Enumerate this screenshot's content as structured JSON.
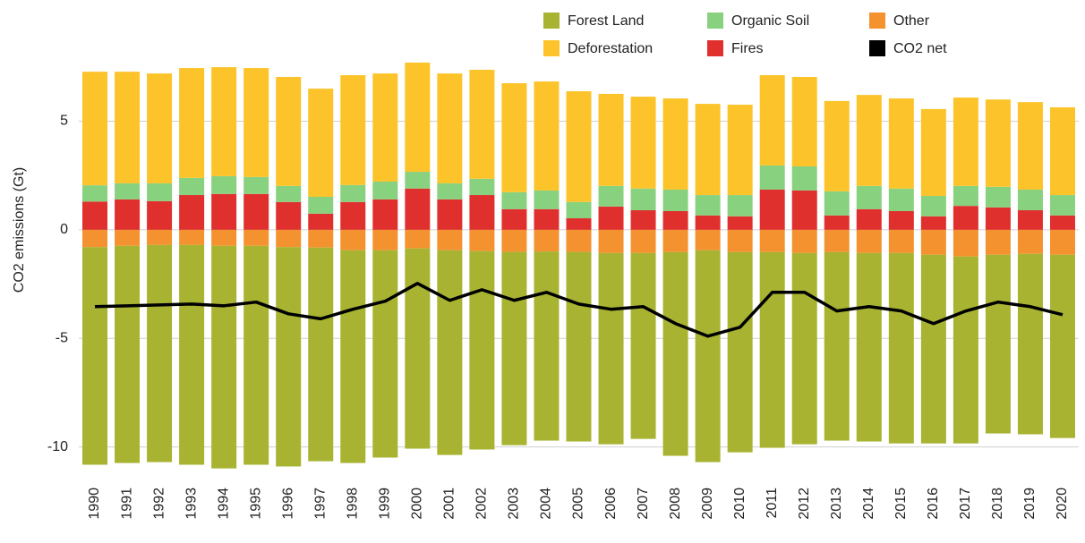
{
  "chart_data": {
    "type": "bar",
    "y_label": "CO2 emissions (Gt)",
    "categories": [
      "1990",
      "1991",
      "1992",
      "1993",
      "1994",
      "1995",
      "1996",
      "1997",
      "1998",
      "1999",
      "2000",
      "2001",
      "2002",
      "2003",
      "2004",
      "2005",
      "2006",
      "2007",
      "2008",
      "2009",
      "2010",
      "2011",
      "2012",
      "2013",
      "2014",
      "2015",
      "2016",
      "2017",
      "2018",
      "2019",
      "2020"
    ],
    "stacked": true,
    "series": [
      {
        "name": "Forest Land",
        "color": "#a8b332",
        "values": [
          -10.02,
          -10.0,
          -10.0,
          -10.12,
          -10.25,
          -10.08,
          -10.1,
          -9.84,
          -9.8,
          -9.55,
          -9.22,
          -9.43,
          -9.14,
          -8.9,
          -8.71,
          -8.73,
          -8.81,
          -8.56,
          -9.38,
          -9.76,
          -9.22,
          -9.01,
          -8.81,
          -8.68,
          -8.68,
          -8.77,
          -8.69,
          -8.61,
          -8.23,
          -8.31,
          -8.44
        ]
      },
      {
        "name": "Deforestation",
        "color": "#fcc42a",
        "values": [
          5.23,
          5.14,
          5.06,
          5.06,
          5.02,
          5.02,
          5.02,
          4.98,
          5.06,
          4.98,
          5.03,
          5.06,
          5.02,
          5.02,
          5.02,
          5.1,
          4.24,
          4.23,
          4.2,
          4.2,
          4.16,
          4.16,
          4.12,
          4.16,
          4.19,
          4.15,
          4.0,
          4.07,
          4.02,
          4.03,
          4.04
        ]
      },
      {
        "name": "Organic Soil",
        "color": "#88d17f",
        "values": [
          0.75,
          0.74,
          0.82,
          0.79,
          0.82,
          0.78,
          0.74,
          0.78,
          0.78,
          0.82,
          0.77,
          0.74,
          0.75,
          0.78,
          0.86,
          0.75,
          0.95,
          1.0,
          0.99,
          0.94,
          0.98,
          1.11,
          1.11,
          1.11,
          1.07,
          1.04,
          0.94,
          0.92,
          0.95,
          0.95,
          0.94
        ]
      },
      {
        "name": "Fires",
        "color": "#e0302e",
        "values": [
          1.3,
          1.4,
          1.32,
          1.6,
          1.65,
          1.65,
          1.28,
          0.74,
          1.28,
          1.4,
          1.9,
          1.4,
          1.6,
          0.95,
          0.95,
          0.53,
          1.07,
          0.9,
          0.86,
          0.66,
          0.62,
          1.85,
          1.81,
          0.66,
          0.95,
          0.86,
          0.62,
          1.1,
          1.03,
          0.9,
          0.66
        ]
      },
      {
        "name": "Other",
        "color": "#f3922e",
        "values": [
          -0.8,
          -0.74,
          -0.7,
          -0.7,
          -0.74,
          -0.74,
          -0.8,
          -0.82,
          -0.94,
          -0.94,
          -0.86,
          -0.94,
          -0.98,
          -1.02,
          -1.0,
          -1.02,
          -1.07,
          -1.07,
          -1.03,
          -0.94,
          -1.03,
          -1.03,
          -1.07,
          -1.03,
          -1.07,
          -1.07,
          -1.15,
          -1.23,
          -1.15,
          -1.11,
          -1.15
        ]
      },
      {
        "name": "CO2 net",
        "color": "#000000",
        "type": "line",
        "values": [
          -3.54,
          -3.5,
          -3.46,
          -3.42,
          -3.5,
          -3.33,
          -3.87,
          -4.1,
          -3.66,
          -3.29,
          -2.47,
          -3.25,
          -2.76,
          -3.25,
          -2.88,
          -3.42,
          -3.66,
          -3.54,
          -4.32,
          -4.9,
          -4.49,
          -2.88,
          -2.88,
          -3.74,
          -3.54,
          -3.74,
          -4.32,
          -3.74,
          -3.33,
          -3.54,
          -3.91
        ]
      }
    ],
    "ylim": [
      -11.5,
      10.5
    ],
    "yticks": [
      -10,
      -5,
      0,
      5
    ],
    "grid": true
  }
}
